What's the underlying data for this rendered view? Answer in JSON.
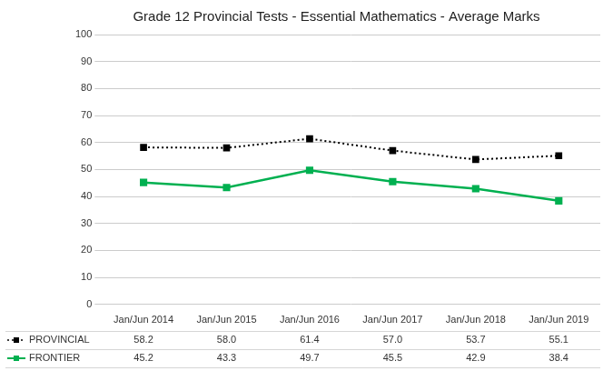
{
  "chart_data": {
    "type": "line",
    "title": "Grade 12 Provincial Tests - Essential Mathematics - Average Marks",
    "categories": [
      "Jan/Jun 2014",
      "Jan/Jun 2015",
      "Jan/Jun 2016",
      "Jan/Jun 2017",
      "Jan/Jun 2018",
      "Jan/Jun 2019"
    ],
    "series": [
      {
        "name": "PROVINCIAL",
        "color": "#000000",
        "marker": "square",
        "line_style": "dotted",
        "values": [
          58.2,
          58.0,
          61.4,
          57.0,
          53.7,
          55.1
        ],
        "value_labels": [
          "58.2",
          "58.0",
          "61.4",
          "57.0",
          "53.7",
          "55.1"
        ]
      },
      {
        "name": "FRONTIER",
        "color": "#00b050",
        "marker": "square",
        "line_style": "solid",
        "values": [
          45.2,
          43.3,
          49.7,
          45.5,
          42.9,
          38.4
        ],
        "value_labels": [
          "45.2",
          "43.3",
          "49.7",
          "45.5",
          "42.9",
          "38.4"
        ]
      }
    ],
    "ylim": [
      0,
      100
    ],
    "yticks": [
      0,
      10,
      20,
      30,
      40,
      50,
      60,
      70,
      80,
      90,
      100
    ],
    "grid": true,
    "legend": "bottom",
    "data_labels": true
  }
}
